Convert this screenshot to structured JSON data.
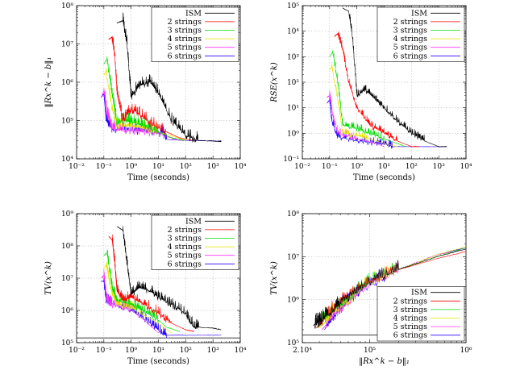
{
  "figure": {
    "series_names": [
      "ISM",
      "2 strings",
      "3 strings",
      "4 strings",
      "5 strings",
      "6 strings"
    ],
    "series_colors": [
      "#000000",
      "#ff0000",
      "#00dd00",
      "#e6e600",
      "#ff33ff",
      "#2a00ff"
    ]
  },
  "chart_data": [
    {
      "type": "line",
      "xscale": "log",
      "yscale": "log",
      "xlim": [
        0.01,
        10000
      ],
      "ylim": [
        10000,
        100000000
      ],
      "xticks": [
        "10⁻²",
        "10⁻¹",
        "10⁰",
        "10¹",
        "10²",
        "10³",
        "10⁴"
      ],
      "yticks": [
        "10⁴",
        "10⁵",
        "10⁶",
        "10⁷",
        "10⁸"
      ],
      "xlabel": "Time (seconds)",
      "ylabel": "‖Rx^k − b‖₁",
      "grid": true,
      "legend": "top-right",
      "noisy": true,
      "series": [
        {
          "name": "ISM",
          "x": [
            0.3,
            0.5,
            0.7,
            1,
            2,
            5,
            10,
            30,
            100,
            300,
            1000,
            2000
          ],
          "y": [
            35000000,
            40000000,
            10000000,
            400000,
            800000,
            1000000,
            500000,
            100000,
            40000,
            30000,
            29000,
            28000
          ]
        },
        {
          "name": "2 strings",
          "x": [
            0.15,
            0.2,
            0.25,
            0.3,
            0.5,
            1,
            2,
            5,
            20,
            60,
            200
          ],
          "y": [
            13000000,
            15000000,
            5000000,
            600000,
            100000,
            200000,
            150000,
            80000,
            50000,
            35000,
            30000
          ]
        },
        {
          "name": "3 strings",
          "x": [
            0.1,
            0.13,
            0.2,
            0.3,
            0.5,
            1,
            3,
            10,
            30,
            100
          ],
          "y": [
            3000000,
            4000000,
            500000,
            80000,
            100000,
            90000,
            70000,
            50000,
            35000,
            30000
          ]
        },
        {
          "name": "4 strings",
          "x": [
            0.1,
            0.12,
            0.2,
            0.3,
            1,
            3,
            10,
            30,
            100
          ],
          "y": [
            1500000,
            2000000,
            200000,
            70000,
            70000,
            60000,
            50000,
            40000,
            30000
          ]
        },
        {
          "name": "5 strings",
          "x": [
            0.08,
            0.1,
            0.13,
            0.2,
            0.5,
            2,
            10,
            30,
            60
          ],
          "y": [
            400000,
            600000,
            150000,
            60000,
            55000,
            50000,
            45000,
            35000,
            30000
          ]
        },
        {
          "name": "6 strings",
          "x": [
            0.08,
            0.1,
            0.12,
            0.2,
            1,
            5,
            15,
            20,
            100,
            2000
          ],
          "y": [
            400000,
            500000,
            100000,
            60000,
            55000,
            50000,
            45000,
            32000,
            30000,
            29000
          ]
        }
      ]
    },
    {
      "type": "line",
      "xscale": "log",
      "yscale": "log",
      "xlim": [
        0.01,
        10000
      ],
      "ylim": [
        0.1,
        100000
      ],
      "xticks": [
        "10⁻²",
        "10⁻¹",
        "10⁰",
        "10¹",
        "10²",
        "10³",
        "10⁴"
      ],
      "yticks": [
        "10⁻¹",
        "10⁰",
        "10¹",
        "10²",
        "10³",
        "10⁴",
        "10⁵"
      ],
      "xlabel": "Time (seconds)",
      "ylabel": "RSE(x^k)",
      "grid": true,
      "legend": "top-right",
      "noisy": true,
      "series": [
        {
          "name": "ISM",
          "x": [
            0.3,
            0.5,
            0.7,
            1,
            2,
            5,
            10,
            30,
            100,
            300,
            1000,
            2000
          ],
          "y": [
            80000,
            60000,
            5000,
            30,
            50,
            20,
            10,
            3,
            1,
            0.5,
            0.3,
            0.3
          ]
        },
        {
          "name": "2 strings",
          "x": [
            0.15,
            0.2,
            0.3,
            0.5,
            1,
            3,
            10,
            30,
            100,
            200
          ],
          "y": [
            6000,
            8000,
            2000,
            100,
            10,
            2,
            1,
            0.5,
            0.3,
            0.3
          ]
        },
        {
          "name": "3 strings",
          "x": [
            0.1,
            0.13,
            0.2,
            0.3,
            1,
            3,
            10,
            30,
            60
          ],
          "y": [
            1000,
            1500,
            100,
            2,
            1.5,
            1,
            0.6,
            0.4,
            0.3
          ]
        },
        {
          "name": "4 strings",
          "x": [
            0.1,
            0.12,
            0.2,
            0.3,
            1,
            3,
            10,
            30
          ],
          "y": [
            300,
            400,
            20,
            1,
            0.8,
            0.6,
            0.4,
            0.3
          ]
        },
        {
          "name": "5 strings",
          "x": [
            0.08,
            0.1,
            0.13,
            0.2,
            1,
            5,
            10
          ],
          "y": [
            25,
            30,
            5,
            1,
            0.6,
            0.4,
            0.3
          ]
        },
        {
          "name": "6 strings",
          "x": [
            0.08,
            0.1,
            0.12,
            0.2,
            1,
            5,
            15,
            20,
            100,
            2000
          ],
          "y": [
            15,
            20,
            3,
            0.7,
            0.5,
            0.4,
            0.35,
            0.3,
            0.3,
            0.3
          ]
        }
      ]
    },
    {
      "type": "line",
      "xscale": "log",
      "yscale": "log",
      "xlim": [
        0.01,
        10000
      ],
      "ylim": [
        100000,
        1000000000
      ],
      "xticks": [
        "10⁻²",
        "10⁻¹",
        "10⁰",
        "10¹",
        "10²",
        "10³",
        "10⁴"
      ],
      "yticks": [
        "10⁵",
        "10⁶",
        "10⁷",
        "10⁸",
        "10⁹"
      ],
      "xlabel": "Time (seconds)",
      "ylabel": "TV(x^k)",
      "grid": true,
      "legend": "top-right",
      "noisy": true,
      "reference_line": 140000,
      "series": [
        {
          "name": "ISM",
          "x": [
            0.3,
            0.5,
            0.7,
            1,
            2,
            5,
            10,
            30,
            100,
            200,
            300,
            1000,
            2000
          ],
          "y": [
            400000000,
            300000000,
            30000000,
            3000000,
            5000000,
            4000000,
            2500000,
            1500000,
            800000,
            300000,
            300000,
            280000,
            250000
          ]
        },
        {
          "name": "2 strings",
          "x": [
            0.15,
            0.2,
            0.25,
            0.3,
            0.5,
            1,
            3,
            10,
            30,
            100,
            200
          ],
          "y": [
            200000000,
            150000000,
            30000000,
            4000000,
            2000000,
            2500000,
            1500000,
            800000,
            400000,
            250000,
            220000
          ]
        },
        {
          "name": "3 strings",
          "x": [
            0.1,
            0.13,
            0.2,
            0.3,
            1,
            3,
            10,
            20,
            60
          ],
          "y": [
            50000000,
            60000000,
            5000000,
            2000000,
            1500000,
            900000,
            500000,
            300000,
            220000
          ]
        },
        {
          "name": "4 strings",
          "x": [
            0.1,
            0.12,
            0.2,
            0.3,
            1,
            3,
            10,
            30
          ],
          "y": [
            20000000,
            25000000,
            3000000,
            1500000,
            1200000,
            700000,
            400000,
            200000
          ]
        },
        {
          "name": "5 strings",
          "x": [
            0.08,
            0.1,
            0.13,
            0.2,
            1,
            3,
            10
          ],
          "y": [
            10000000,
            12000000,
            2000000,
            1500000,
            1000000,
            500000,
            200000
          ]
        },
        {
          "name": "6 strings",
          "x": [
            0.08,
            0.1,
            0.12,
            0.2,
            1,
            5,
            15,
            20,
            100,
            2000
          ],
          "y": [
            8000000,
            8000000,
            2000000,
            1600000,
            1000000,
            400000,
            180000,
            170000,
            170000,
            170000
          ]
        }
      ]
    },
    {
      "type": "line",
      "xscale": "log",
      "yscale": "log",
      "xlim": [
        20000,
        1000000
      ],
      "ylim": [
        100000,
        100000000
      ],
      "xticks": [
        "2.10⁴",
        "10⁵",
        "10⁶"
      ],
      "yticks": [
        "10⁵",
        "10⁶",
        "10⁷",
        "10⁸"
      ],
      "xlabel": "‖Rx^k − b‖₁",
      "ylabel": "TV(x^k)",
      "grid": true,
      "legend": "bottom-right",
      "noisy": true,
      "reference_line": 150000,
      "series": [
        {
          "name": "ISM",
          "x": [
            26000,
            27000,
            28000,
            30000,
            35000,
            50000,
            100000,
            200000,
            500000,
            1000000
          ],
          "y": [
            250000,
            270000,
            280000,
            300000,
            400000,
            800000,
            2500000,
            5000000,
            10000000,
            15000000
          ]
        },
        {
          "name": "2 strings",
          "x": [
            28000,
            30000,
            35000,
            50000,
            100000,
            200000,
            500000,
            1000000
          ],
          "y": [
            220000,
            250000,
            400000,
            900000,
            2500000,
            5000000,
            9000000,
            13000000
          ]
        },
        {
          "name": "3 strings",
          "x": [
            29000,
            32000,
            40000,
            60000,
            100000,
            200000,
            500000,
            1000000
          ],
          "y": [
            220000,
            300000,
            500000,
            1000000,
            2500000,
            5000000,
            10000000,
            16000000
          ]
        },
        {
          "name": "4 strings",
          "x": [
            30000,
            35000,
            40000,
            60000,
            100000,
            200000,
            500000,
            1000000
          ],
          "y": [
            220000,
            300000,
            450000,
            900000,
            2500000,
            5000000,
            11000000,
            17000000
          ]
        },
        {
          "name": "5 strings",
          "x": [
            32000,
            35000,
            40000,
            55000,
            80000,
            200000,
            500000,
            1000000
          ],
          "y": [
            200000,
            250000,
            400000,
            700000,
            1500000,
            5000000,
            11000000,
            15000000
          ]
        },
        {
          "name": "6 strings",
          "x": [
            34000,
            36000,
            40000,
            50000,
            60000,
            80000,
            200000,
            500000,
            1000000
          ],
          "y": [
            200000,
            250000,
            350000,
            600000,
            900000,
            1500000,
            5000000,
            11000000,
            16000000
          ]
        }
      ]
    }
  ]
}
